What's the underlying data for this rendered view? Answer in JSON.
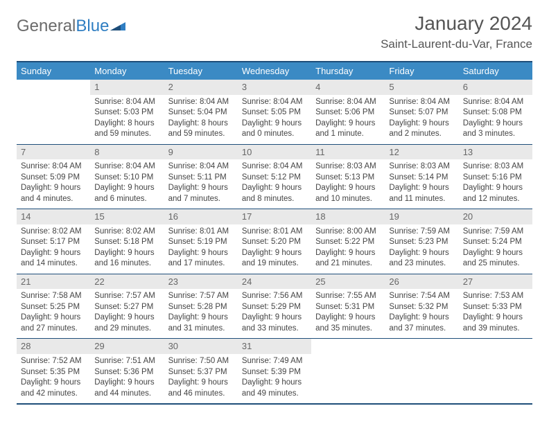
{
  "logo": {
    "text1": "General",
    "text2": "Blue"
  },
  "title": "January 2024",
  "location": "Saint-Laurent-du-Var, France",
  "day_labels": [
    "Sunday",
    "Monday",
    "Tuesday",
    "Wednesday",
    "Thursday",
    "Friday",
    "Saturday"
  ],
  "colors": {
    "header_bg": "#3b8ac4",
    "header_text": "#ffffff",
    "border": "#1e4e79",
    "daynum_bg": "#e9e9e9",
    "logo_gray": "#6b6b6b",
    "logo_blue": "#2f7ec2"
  },
  "weeks": [
    [
      {
        "n": "",
        "sr": "",
        "ss": "",
        "dl": ""
      },
      {
        "n": "1",
        "sr": "Sunrise: 8:04 AM",
        "ss": "Sunset: 5:03 PM",
        "dl": "Daylight: 8 hours and 59 minutes."
      },
      {
        "n": "2",
        "sr": "Sunrise: 8:04 AM",
        "ss": "Sunset: 5:04 PM",
        "dl": "Daylight: 8 hours and 59 minutes."
      },
      {
        "n": "3",
        "sr": "Sunrise: 8:04 AM",
        "ss": "Sunset: 5:05 PM",
        "dl": "Daylight: 9 hours and 0 minutes."
      },
      {
        "n": "4",
        "sr": "Sunrise: 8:04 AM",
        "ss": "Sunset: 5:06 PM",
        "dl": "Daylight: 9 hours and 1 minute."
      },
      {
        "n": "5",
        "sr": "Sunrise: 8:04 AM",
        "ss": "Sunset: 5:07 PM",
        "dl": "Daylight: 9 hours and 2 minutes."
      },
      {
        "n": "6",
        "sr": "Sunrise: 8:04 AM",
        "ss": "Sunset: 5:08 PM",
        "dl": "Daylight: 9 hours and 3 minutes."
      }
    ],
    [
      {
        "n": "7",
        "sr": "Sunrise: 8:04 AM",
        "ss": "Sunset: 5:09 PM",
        "dl": "Daylight: 9 hours and 4 minutes."
      },
      {
        "n": "8",
        "sr": "Sunrise: 8:04 AM",
        "ss": "Sunset: 5:10 PM",
        "dl": "Daylight: 9 hours and 6 minutes."
      },
      {
        "n": "9",
        "sr": "Sunrise: 8:04 AM",
        "ss": "Sunset: 5:11 PM",
        "dl": "Daylight: 9 hours and 7 minutes."
      },
      {
        "n": "10",
        "sr": "Sunrise: 8:04 AM",
        "ss": "Sunset: 5:12 PM",
        "dl": "Daylight: 9 hours and 8 minutes."
      },
      {
        "n": "11",
        "sr": "Sunrise: 8:03 AM",
        "ss": "Sunset: 5:13 PM",
        "dl": "Daylight: 9 hours and 10 minutes."
      },
      {
        "n": "12",
        "sr": "Sunrise: 8:03 AM",
        "ss": "Sunset: 5:14 PM",
        "dl": "Daylight: 9 hours and 11 minutes."
      },
      {
        "n": "13",
        "sr": "Sunrise: 8:03 AM",
        "ss": "Sunset: 5:16 PM",
        "dl": "Daylight: 9 hours and 12 minutes."
      }
    ],
    [
      {
        "n": "14",
        "sr": "Sunrise: 8:02 AM",
        "ss": "Sunset: 5:17 PM",
        "dl": "Daylight: 9 hours and 14 minutes."
      },
      {
        "n": "15",
        "sr": "Sunrise: 8:02 AM",
        "ss": "Sunset: 5:18 PM",
        "dl": "Daylight: 9 hours and 16 minutes."
      },
      {
        "n": "16",
        "sr": "Sunrise: 8:01 AM",
        "ss": "Sunset: 5:19 PM",
        "dl": "Daylight: 9 hours and 17 minutes."
      },
      {
        "n": "17",
        "sr": "Sunrise: 8:01 AM",
        "ss": "Sunset: 5:20 PM",
        "dl": "Daylight: 9 hours and 19 minutes."
      },
      {
        "n": "18",
        "sr": "Sunrise: 8:00 AM",
        "ss": "Sunset: 5:22 PM",
        "dl": "Daylight: 9 hours and 21 minutes."
      },
      {
        "n": "19",
        "sr": "Sunrise: 7:59 AM",
        "ss": "Sunset: 5:23 PM",
        "dl": "Daylight: 9 hours and 23 minutes."
      },
      {
        "n": "20",
        "sr": "Sunrise: 7:59 AM",
        "ss": "Sunset: 5:24 PM",
        "dl": "Daylight: 9 hours and 25 minutes."
      }
    ],
    [
      {
        "n": "21",
        "sr": "Sunrise: 7:58 AM",
        "ss": "Sunset: 5:25 PM",
        "dl": "Daylight: 9 hours and 27 minutes."
      },
      {
        "n": "22",
        "sr": "Sunrise: 7:57 AM",
        "ss": "Sunset: 5:27 PM",
        "dl": "Daylight: 9 hours and 29 minutes."
      },
      {
        "n": "23",
        "sr": "Sunrise: 7:57 AM",
        "ss": "Sunset: 5:28 PM",
        "dl": "Daylight: 9 hours and 31 minutes."
      },
      {
        "n": "24",
        "sr": "Sunrise: 7:56 AM",
        "ss": "Sunset: 5:29 PM",
        "dl": "Daylight: 9 hours and 33 minutes."
      },
      {
        "n": "25",
        "sr": "Sunrise: 7:55 AM",
        "ss": "Sunset: 5:31 PM",
        "dl": "Daylight: 9 hours and 35 minutes."
      },
      {
        "n": "26",
        "sr": "Sunrise: 7:54 AM",
        "ss": "Sunset: 5:32 PM",
        "dl": "Daylight: 9 hours and 37 minutes."
      },
      {
        "n": "27",
        "sr": "Sunrise: 7:53 AM",
        "ss": "Sunset: 5:33 PM",
        "dl": "Daylight: 9 hours and 39 minutes."
      }
    ],
    [
      {
        "n": "28",
        "sr": "Sunrise: 7:52 AM",
        "ss": "Sunset: 5:35 PM",
        "dl": "Daylight: 9 hours and 42 minutes."
      },
      {
        "n": "29",
        "sr": "Sunrise: 7:51 AM",
        "ss": "Sunset: 5:36 PM",
        "dl": "Daylight: 9 hours and 44 minutes."
      },
      {
        "n": "30",
        "sr": "Sunrise: 7:50 AM",
        "ss": "Sunset: 5:37 PM",
        "dl": "Daylight: 9 hours and 46 minutes."
      },
      {
        "n": "31",
        "sr": "Sunrise: 7:49 AM",
        "ss": "Sunset: 5:39 PM",
        "dl": "Daylight: 9 hours and 49 minutes."
      },
      {
        "n": "",
        "sr": "",
        "ss": "",
        "dl": ""
      },
      {
        "n": "",
        "sr": "",
        "ss": "",
        "dl": ""
      },
      {
        "n": "",
        "sr": "",
        "ss": "",
        "dl": ""
      }
    ]
  ]
}
